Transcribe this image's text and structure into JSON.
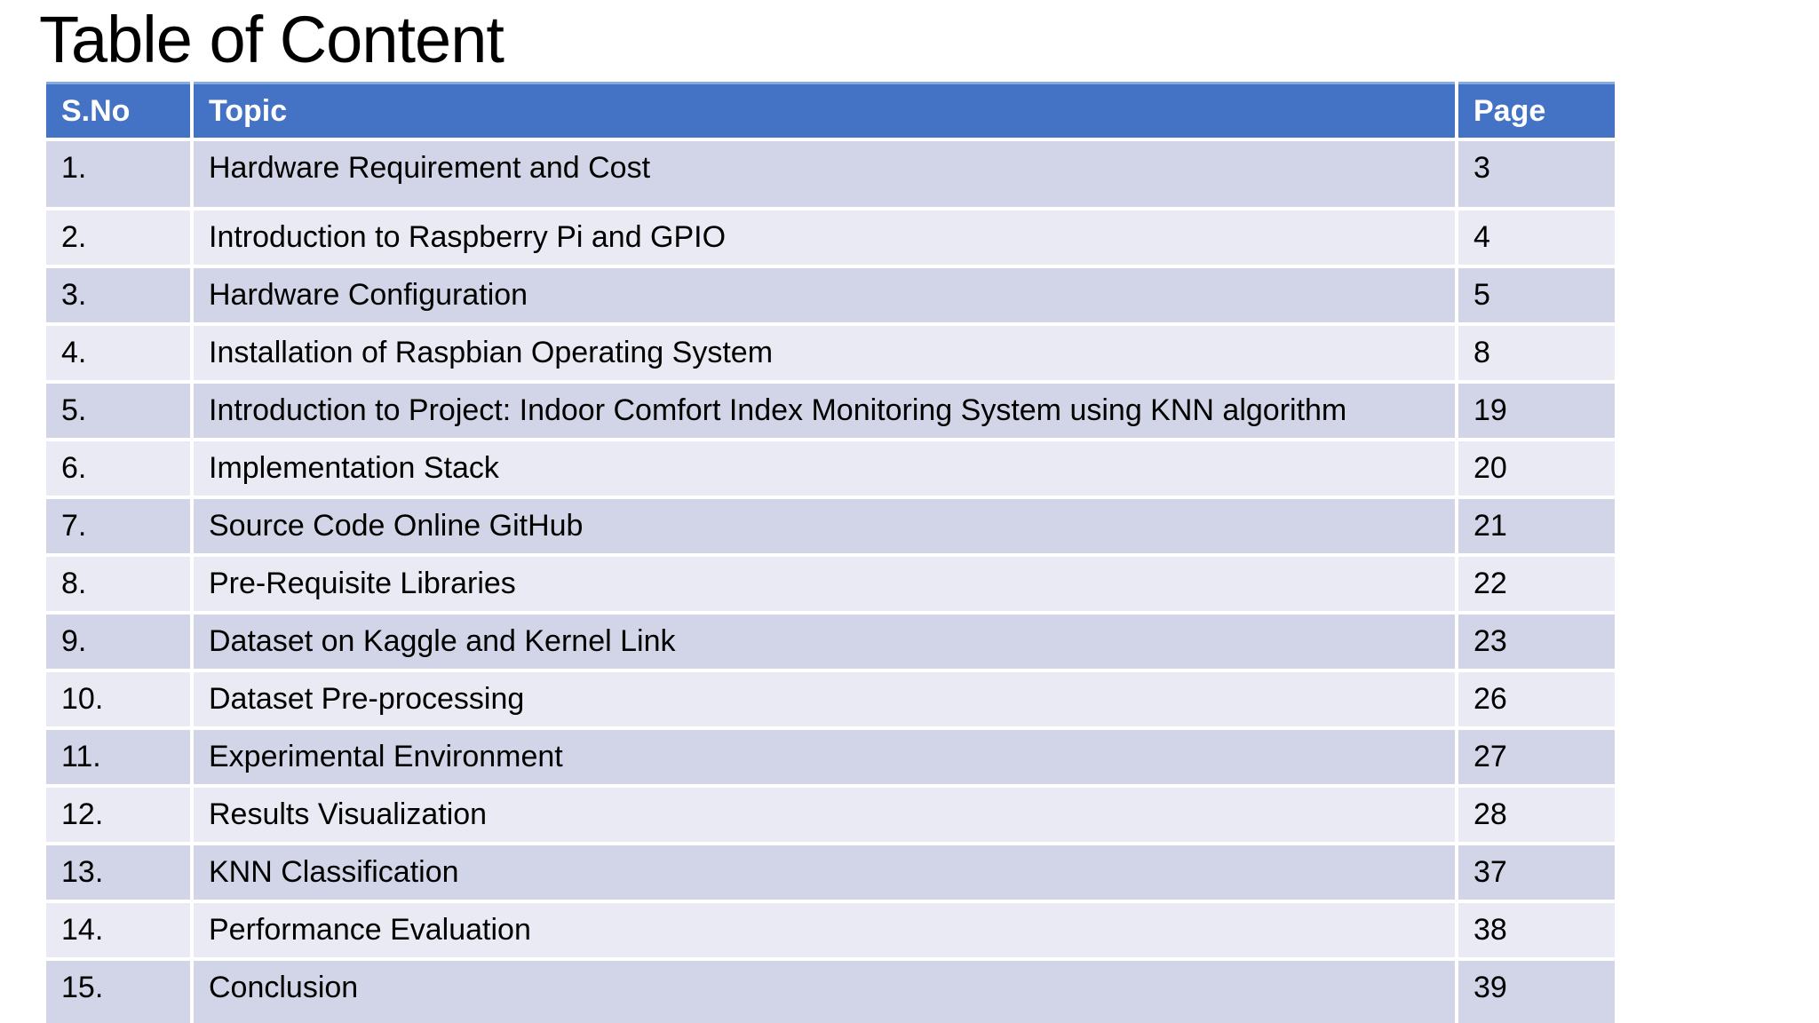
{
  "title": "Table of Content",
  "table": {
    "columns": [
      "S.No",
      "Topic",
      "Page"
    ],
    "rows": [
      {
        "sno": "1.",
        "topic": "Hardware Requirement and Cost",
        "page": "3"
      },
      {
        "sno": "2.",
        "topic": "Introduction to Raspberry Pi and GPIO",
        "page": "4"
      },
      {
        "sno": "3.",
        "topic": "Hardware Configuration",
        "page": "5"
      },
      {
        "sno": "4.",
        "topic": "Installation of Raspbian Operating System",
        "page": "8"
      },
      {
        "sno": "5.",
        "topic": "Introduction to Project: Indoor Comfort Index Monitoring System using KNN algorithm",
        "page": "19"
      },
      {
        "sno": "6.",
        "topic": "Implementation Stack",
        "page": "20"
      },
      {
        "sno": "7.",
        "topic": "Source Code Online GitHub",
        "page": "21"
      },
      {
        "sno": "8.",
        "topic": "Pre-Requisite Libraries",
        "page": "22"
      },
      {
        "sno": "9.",
        "topic": "Dataset on Kaggle and Kernel Link",
        "page": "23"
      },
      {
        "sno": "10.",
        "topic": "Dataset Pre-processing",
        "page": "26"
      },
      {
        "sno": "11.",
        "topic": "Experimental Environment",
        "page": "27"
      },
      {
        "sno": "12.",
        "topic": "Results Visualization",
        "page": "28"
      },
      {
        "sno": "13.",
        "topic": "KNN Classification",
        "page": "37"
      },
      {
        "sno": "14.",
        "topic": "Performance Evaluation",
        "page": "38"
      },
      {
        "sno": "15.",
        "topic": "Conclusion",
        "page": "39"
      }
    ]
  },
  "colors": {
    "header_bg": "#4472C4",
    "header_highlight": "#85AADC",
    "header_text": "#FFFFFF",
    "row_dark": "#D1D5E7",
    "row_light": "#E9EAF3",
    "grid": "#FFFFFF",
    "body_text": "#000000",
    "title_text": "#000000",
    "background": "#FFFFFF"
  }
}
